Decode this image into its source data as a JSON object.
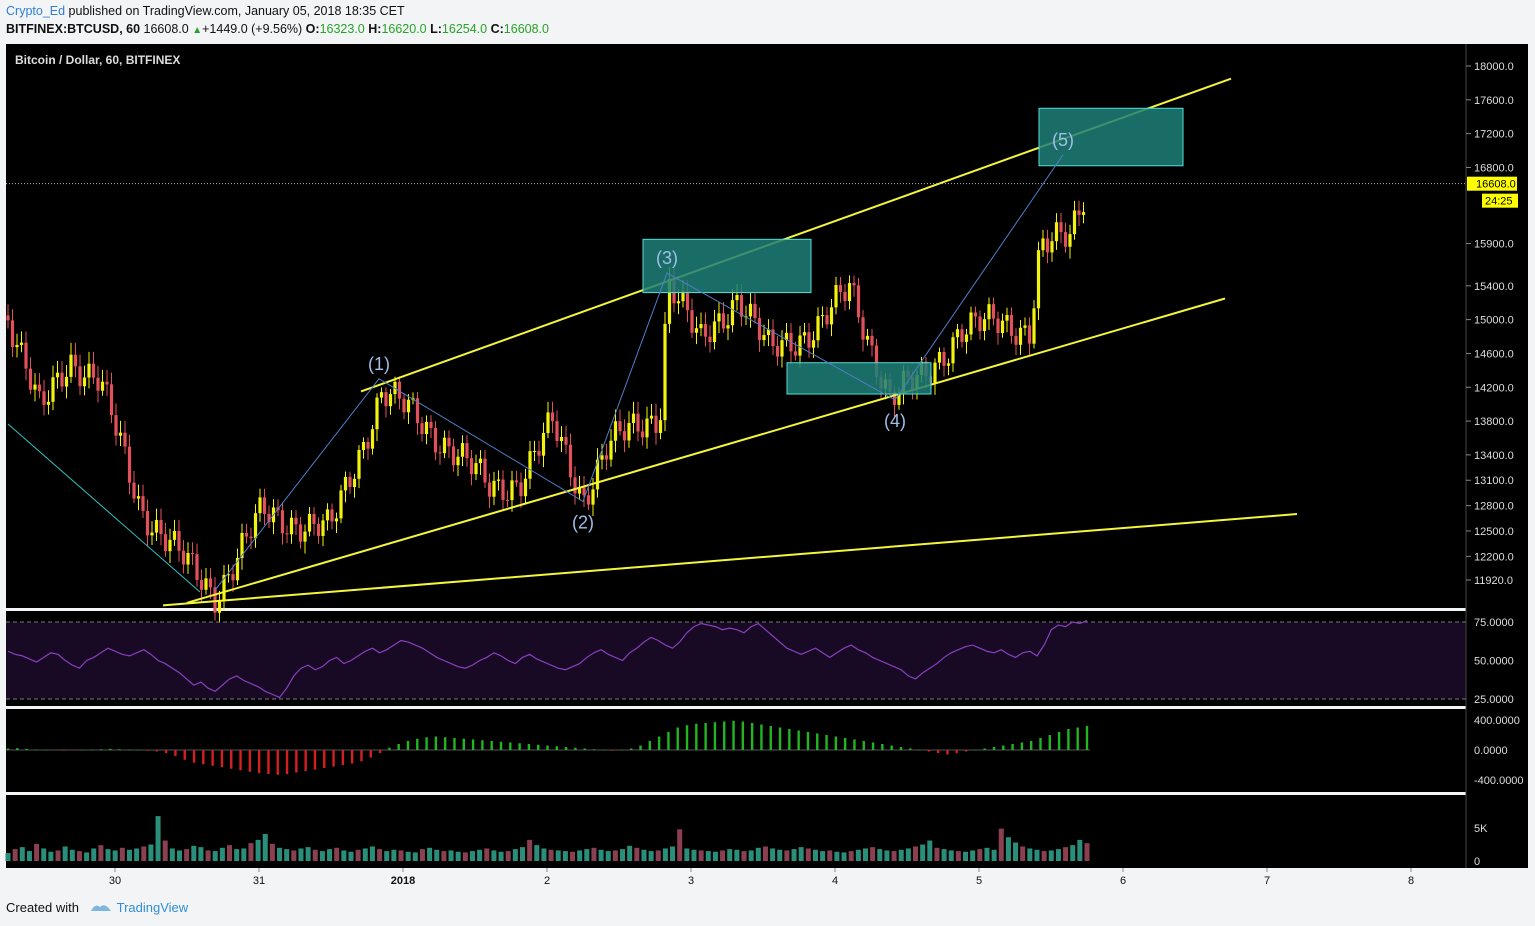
{
  "header": {
    "user": "Crypto_Ed",
    "published": "published on TradingView.com, January 05, 2018 18:35 CET",
    "symbol": "BITFINEX:BTCUSD, 60",
    "last": "16608.0",
    "change": "+1449.0 (+9.56%)",
    "o_label": "O:",
    "o": "16323.0",
    "h_label": "H:",
    "h": "16620.0",
    "l_label": "L:",
    "l": "16254.0",
    "c_label": "C:",
    "c": "16608.0"
  },
  "footer": {
    "created": "Created with",
    "brand": "TradingView"
  },
  "colors": {
    "panel_bg": "#000000",
    "up": "#f2f20f",
    "down": "#e2505c",
    "trendline": "#f5f53c",
    "wave": "#4f7fc8",
    "box": "#1f7f78",
    "rsi_line": "#8a3fbf",
    "rsi_bg": "#180a24",
    "hist_pos": "#22b522",
    "hist_neg": "#d42020",
    "vol_up": "#2a8f7a",
    "vol_down": "#8a4050",
    "price_tag": "#ffff00"
  },
  "chart_data": {
    "type": "candlestick",
    "title": "Bitcoin / Dollar, 60, BITFINEX",
    "price_scale": [
      "18000.0",
      "17600.0",
      "17200.0",
      "16800.0",
      "15900.0",
      "15400.0",
      "15000.0",
      "14600.0",
      "14200.0",
      "13800.0",
      "13400.0",
      "13100.0",
      "12800.0",
      "12500.0",
      "12200.0",
      "11920.0"
    ],
    "price_scale_values": [
      18000,
      17600,
      17200,
      16800,
      15900,
      15400,
      15000,
      14600,
      14200,
      13800,
      13400,
      13100,
      12800,
      12500,
      12200,
      11920
    ],
    "last_price_tag": "16608.0",
    "countdown_tag": "24:25",
    "x_labels": [
      "30",
      "31",
      "2018",
      "2",
      "3",
      "4",
      "5",
      "6",
      "7",
      "8"
    ],
    "x_label_dates": [
      "2017-12-30",
      "2017-12-31",
      "2018-01-01",
      "2018-01-02",
      "2018-01-03",
      "2018-01-04",
      "2018-01-05",
      "2018-01-06",
      "2018-01-07",
      "2018-01-08"
    ],
    "elliott_waves": [
      {
        "label": "(1)",
        "date": "2017-12-31 20:00",
        "price": 14300
      },
      {
        "label": "(2)",
        "date": "2018-01-02 06:00",
        "price": 12850
      },
      {
        "label": "(3)",
        "date": "2018-01-02 20:00",
        "price": 15550
      },
      {
        "label": "(4)",
        "date": "2018-01-04 10:00",
        "price": 14050
      },
      {
        "label": "(5)",
        "date": "2018-01-05 14:00",
        "price": 16950
      }
    ],
    "target_boxes": [
      {
        "name": "wave-3-box",
        "from": "2018-01-02 16:00",
        "to": "2018-01-03 20:00",
        "price_low": 15320,
        "price_high": 15950
      },
      {
        "name": "wave-4-box",
        "from": "2018-01-03 16:00",
        "to": "2018-01-04 16:00",
        "price_low": 14120,
        "price_high": 14490
      },
      {
        "name": "wave-5-box",
        "from": "2018-01-05 10:00",
        "to": "2018-01-06 10:00",
        "price_low": 16820,
        "price_high": 17500
      }
    ],
    "trend_lines": [
      {
        "name": "channel-upper",
        "from_date": "2017-12-31 17:00",
        "from_price": 14150,
        "to_date": "2018-01-06 18:00",
        "to_price": 17850
      },
      {
        "name": "channel-lower",
        "from_date": "2017-12-30 12:00",
        "from_price": 11650,
        "to_date": "2018-01-06 17:00",
        "to_price": 15250
      },
      {
        "name": "long-support",
        "from_date": "2017-12-30 08:00",
        "from_price": 11620,
        "to_date": "2018-01-07 05:00",
        "to_price": 12700
      }
    ],
    "rsi": {
      "scale": [
        "75.0000",
        "50.0000",
        "25.0000"
      ],
      "levels": [
        75,
        50,
        25
      ],
      "values": [
        56,
        54,
        53,
        51,
        49,
        52,
        55,
        54,
        50,
        47,
        45,
        50,
        52,
        55,
        58,
        56,
        54,
        53,
        55,
        57,
        54,
        50,
        48,
        45,
        42,
        38,
        34,
        36,
        32,
        30,
        34,
        38,
        40,
        37,
        35,
        33,
        30,
        28,
        26,
        32,
        40,
        45,
        47,
        44,
        46,
        50,
        52,
        48,
        50,
        53,
        56,
        58,
        55,
        57,
        60,
        63,
        62,
        60,
        58,
        55,
        52,
        50,
        48,
        46,
        45,
        47,
        50,
        52,
        55,
        53,
        50,
        48,
        52,
        54,
        51,
        49,
        47,
        45,
        44,
        46,
        48,
        52,
        55,
        57,
        54,
        52,
        50,
        55,
        58,
        62,
        65,
        63,
        60,
        58,
        62,
        68,
        72,
        74,
        73,
        72,
        70,
        71,
        70,
        68,
        72,
        74,
        70,
        66,
        62,
        58,
        56,
        54,
        56,
        58,
        55,
        52,
        55,
        58,
        60,
        57,
        55,
        52,
        50,
        48,
        46,
        44,
        40,
        38,
        42,
        45,
        48,
        52,
        55,
        57,
        59,
        60,
        58,
        56,
        55,
        57,
        54,
        52,
        55,
        56,
        53,
        60,
        70,
        73,
        72,
        75,
        74,
        76
      ]
    },
    "histogram": {
      "scale": [
        "400.0000",
        "0.0000",
        "-400.0000"
      ],
      "values": [
        20,
        25,
        15,
        5,
        0,
        -5,
        -10,
        -5,
        0,
        5,
        10,
        15,
        10,
        5,
        0,
        -10,
        -20,
        -40,
        -80,
        -130,
        -170,
        -190,
        -210,
        -230,
        -250,
        -270,
        -290,
        -310,
        -320,
        -330,
        -320,
        -300,
        -280,
        -260,
        -240,
        -220,
        -200,
        -180,
        -150,
        -100,
        -40,
        30,
        80,
        120,
        150,
        170,
        180,
        170,
        160,
        150,
        140,
        130,
        120,
        110,
        100,
        90,
        80,
        70,
        60,
        50,
        40,
        30,
        20,
        10,
        0,
        -10,
        0,
        20,
        60,
        120,
        180,
        240,
        300,
        330,
        350,
        360,
        370,
        380,
        390,
        380,
        360,
        340,
        320,
        300,
        280,
        260,
        240,
        220,
        200,
        180,
        160,
        140,
        120,
        100,
        80,
        60,
        40,
        20,
        0,
        -20,
        -40,
        -60,
        -40,
        -20,
        0,
        20,
        40,
        60,
        80,
        100,
        120,
        160,
        200,
        240,
        280,
        300,
        320
      ]
    },
    "volume": {
      "scale": [
        "5K",
        "0"
      ],
      "values": [
        1.2,
        1.8,
        2.1,
        1.5,
        2.6,
        1.9,
        1.4,
        1.6,
        2.2,
        1.7,
        1.5,
        1.3,
        1.9,
        2.4,
        1.8,
        1.6,
        2.0,
        1.7,
        1.9,
        2.2,
        2.5,
        6.8,
        3.1,
        1.9,
        1.6,
        1.8,
        2.3,
        2.1,
        1.6,
        1.5,
        2.0,
        2.4,
        1.8,
        1.9,
        2.7,
        3.2,
        4.1,
        2.6,
        2.0,
        1.8,
        1.6,
        1.9,
        2.1,
        1.7,
        1.5,
        1.8,
        2.0,
        1.6,
        1.4,
        1.7,
        1.9,
        2.2,
        1.8,
        1.5,
        1.7,
        1.6,
        1.4,
        1.3,
        1.8,
        2.0,
        1.7,
        1.5,
        1.6,
        1.4,
        1.3,
        1.5,
        1.7,
        1.9,
        1.6,
        1.4,
        1.5,
        1.8,
        2.1,
        3.2,
        2.4,
        1.9,
        1.7,
        1.6,
        1.5,
        1.4,
        1.6,
        1.8,
        2.0,
        1.7,
        1.5,
        1.6,
        1.8,
        2.3,
        2.0,
        1.7,
        1.5,
        1.6,
        1.9,
        2.2,
        4.8,
        1.9,
        1.7,
        1.6,
        1.5,
        1.4,
        1.6,
        1.8,
        1.7,
        1.5,
        1.6,
        2.0,
        2.2,
        1.9,
        1.7,
        1.6,
        1.8,
        2.1,
        1.9,
        1.7,
        1.5,
        1.6,
        1.4,
        1.3,
        1.5,
        1.7,
        1.9,
        2.1,
        1.8,
        1.6,
        1.5,
        1.7,
        1.9,
        2.2,
        2.5,
        3.1,
        2.0,
        1.8,
        1.6,
        1.5,
        1.4,
        1.6,
        1.8,
        2.0,
        1.7,
        4.9,
        3.6,
        2.8,
        2.2,
        1.9,
        1.7,
        1.5,
        1.6,
        1.8,
        2.1,
        2.4,
        3.2,
        2.7
      ]
    }
  }
}
